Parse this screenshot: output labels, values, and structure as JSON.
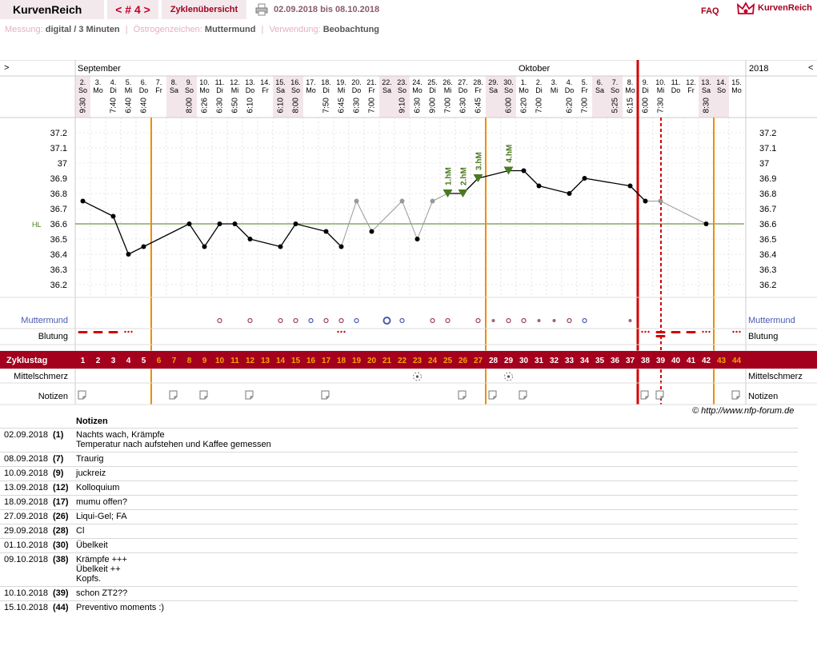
{
  "header": {
    "brand": "KurvenReich",
    "nav": "< # 4 >",
    "overview": "Zyklenübersicht",
    "daterange": "02.09.2018 bis 08.10.2018",
    "faq": "FAQ",
    "logo_text": "KurvenReich"
  },
  "meta": {
    "messung_label": "Messung:",
    "messung_value": "digital / 3 Minuten",
    "oestrogen_label": "Östrogenzeichen:",
    "oestrogen_value": "Muttermund",
    "verwendung_label": "Verwendung:",
    "verwendung_value": "Beobachtung"
  },
  "colors": {
    "accent": "#a4001e",
    "cycle_band": "#a4001e",
    "coverline": "#4a7a1f",
    "marker_line": "#f08c00",
    "weekend_bg": "#f3e6ea",
    "peak_triangle": "#4a7a1f"
  },
  "chart_data": {
    "type": "line",
    "months": [
      {
        "label": "September",
        "col": 0
      },
      {
        "label": "Oktober",
        "col": 29
      }
    ],
    "year_label": "2018",
    "arrow": ">",
    "hl_label": "HL",
    "coverline": 36.6,
    "ylim": [
      36.1,
      37.3
    ],
    "yticks": [
      37.2,
      37.1,
      37.0,
      36.9,
      36.8,
      36.7,
      36.6,
      36.5,
      36.4,
      36.3,
      36.2
    ],
    "days": [
      {
        "date": "2.",
        "wd": "So",
        "time": "9:30",
        "temp": 36.75
      },
      {
        "date": "3.",
        "wd": "Mo",
        "time": "",
        "temp": null
      },
      {
        "date": "4.",
        "wd": "Di",
        "time": "7:40",
        "temp": 36.65
      },
      {
        "date": "5.",
        "wd": "Mi",
        "time": "6:40",
        "temp": 36.4
      },
      {
        "date": "6.",
        "wd": "Do",
        "time": "6:40",
        "temp": 36.45
      },
      {
        "date": "7.",
        "wd": "Fr",
        "time": "",
        "temp": null
      },
      {
        "date": "8.",
        "wd": "Sa",
        "time": "",
        "temp": null
      },
      {
        "date": "9.",
        "wd": "So",
        "time": "8:00",
        "temp": 36.6
      },
      {
        "date": "10.",
        "wd": "Mo",
        "time": "6:26",
        "temp": 36.45
      },
      {
        "date": "11.",
        "wd": "Di",
        "time": "6:30",
        "temp": 36.6
      },
      {
        "date": "12.",
        "wd": "Mi",
        "time": "6:50",
        "temp": 36.6
      },
      {
        "date": "13.",
        "wd": "Do",
        "time": "6:10",
        "temp": 36.5
      },
      {
        "date": "14.",
        "wd": "Fr",
        "time": "",
        "temp": null
      },
      {
        "date": "15.",
        "wd": "Sa",
        "time": "6:10",
        "temp": 36.45
      },
      {
        "date": "16.",
        "wd": "So",
        "time": "8:00",
        "temp": 36.6
      },
      {
        "date": "17.",
        "wd": "Mo",
        "time": "",
        "temp": null
      },
      {
        "date": "18.",
        "wd": "Di",
        "time": "7:50",
        "temp": 36.55
      },
      {
        "date": "19.",
        "wd": "Mi",
        "time": "6:45",
        "temp": 36.45
      },
      {
        "date": "20.",
        "wd": "Do",
        "time": "6:30",
        "temp": 36.75,
        "gray": true
      },
      {
        "date": "21.",
        "wd": "Fr",
        "time": "7:00",
        "temp": 36.55
      },
      {
        "date": "22.",
        "wd": "Sa",
        "time": "",
        "temp": null
      },
      {
        "date": "23.",
        "wd": "So",
        "time": "9:10",
        "temp": 36.75,
        "gray": true
      },
      {
        "date": "24.",
        "wd": "Mo",
        "time": "6:30",
        "temp": 36.5
      },
      {
        "date": "25.",
        "wd": "Di",
        "time": "9:00",
        "temp": 36.75,
        "gray": true
      },
      {
        "date": "26.",
        "wd": "Mi",
        "time": "7:00",
        "temp": 36.8,
        "peak": "1.hM"
      },
      {
        "date": "27.",
        "wd": "Do",
        "time": "6:30",
        "temp": 36.8,
        "peak": "2.hM"
      },
      {
        "date": "28.",
        "wd": "Fr",
        "time": "6:45",
        "temp": 36.9,
        "peak": "3.hM"
      },
      {
        "date": "29.",
        "wd": "Sa",
        "time": "",
        "temp": null
      },
      {
        "date": "30.",
        "wd": "So",
        "time": "6:00",
        "temp": 36.95,
        "peak": "4.hM"
      },
      {
        "date": "1.",
        "wd": "Mo",
        "time": "6:20",
        "temp": 36.95
      },
      {
        "date": "2.",
        "wd": "Di",
        "time": "7:00",
        "temp": 36.85
      },
      {
        "date": "3.",
        "wd": "Mi",
        "time": "",
        "temp": null
      },
      {
        "date": "4.",
        "wd": "Do",
        "time": "6:20",
        "temp": 36.8
      },
      {
        "date": "5.",
        "wd": "Fr",
        "time": "7:00",
        "temp": 36.9
      },
      {
        "date": "6.",
        "wd": "Sa",
        "time": "",
        "temp": null
      },
      {
        "date": "7.",
        "wd": "So",
        "time": "5:25",
        "temp": null
      },
      {
        "date": "8.",
        "wd": "Mo",
        "time": "6:15",
        "temp": 36.85
      },
      {
        "date": "9.",
        "wd": "Di",
        "time": "6:00",
        "temp": 36.75
      },
      {
        "date": "10.",
        "wd": "Mi",
        "time": "7:30",
        "temp": 36.75,
        "gray": true
      },
      {
        "date": "11.",
        "wd": "Do",
        "time": "",
        "temp": null
      },
      {
        "date": "12.",
        "wd": "Fr",
        "time": "",
        "temp": null
      },
      {
        "date": "13.",
        "wd": "Sa",
        "time": "8:30",
        "temp": 36.6
      },
      {
        "date": "14.",
        "wd": "So",
        "time": "",
        "temp": null
      },
      {
        "date": "15.",
        "wd": "Mo",
        "time": "",
        "temp": null
      }
    ],
    "cycle_days": [
      "1",
      "2",
      "3",
      "4",
      "5",
      "6",
      "7",
      "8",
      "9",
      "10",
      "11",
      "12",
      "13",
      "14",
      "15",
      "16",
      "17",
      "18",
      "19",
      "20",
      "21",
      "22",
      "23",
      "24",
      "25",
      "26",
      "27",
      "28",
      "29",
      "30",
      "31",
      "32",
      "33",
      "34",
      "35",
      "36",
      "37",
      "38",
      "39",
      "40",
      "41",
      "42",
      "43",
      "44"
    ],
    "rows": {
      "cycle_label": "Zyklustag",
      "muttermund_label": "Muttermund",
      "blutung_label": "Blutung",
      "mittelschmerz_label": "Mittelschmerz",
      "notizen_label": "Notizen"
    }
  },
  "notes": {
    "title": "Notizen",
    "items": [
      {
        "date": "02.09.2018",
        "num": "(1)",
        "text": "Nachts wach, Krämpfe\nTemperatur nach aufstehen und Kaffee gemessen"
      },
      {
        "date": "08.09.2018",
        "num": "(7)",
        "text": "Traurig"
      },
      {
        "date": "10.09.2018",
        "num": "(9)",
        "text": "juckreiz"
      },
      {
        "date": "13.09.2018",
        "num": "(12)",
        "text": "Kolloquium"
      },
      {
        "date": "18.09.2018",
        "num": "(17)",
        "text": "mumu offen?"
      },
      {
        "date": "27.09.2018",
        "num": "(26)",
        "text": "Liqui-Gel; FA"
      },
      {
        "date": "29.09.2018",
        "num": "(28)",
        "text": "Cl"
      },
      {
        "date": "01.10.2018",
        "num": "(30)",
        "text": "Übelkeit"
      },
      {
        "date": "09.10.2018",
        "num": "(38)",
        "text": "Krämpfe +++\nÜbelkeit ++\nKopfs."
      },
      {
        "date": "10.10.2018",
        "num": "(39)",
        "text": "schon ZT2??"
      },
      {
        "date": "15.10.2018",
        "num": "(44)",
        "text": "Preventivo moments :)"
      }
    ]
  },
  "copyright": "© http://www.nfp-forum.de"
}
